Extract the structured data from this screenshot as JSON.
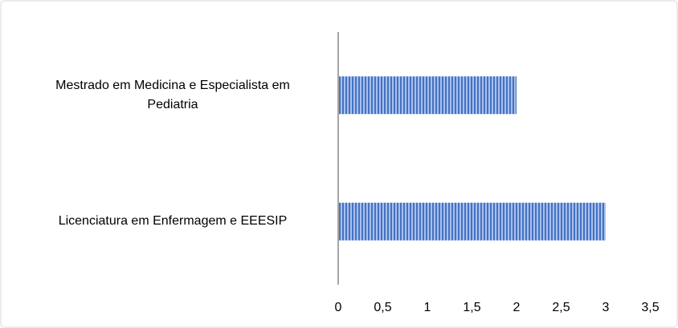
{
  "chart_data": {
    "type": "hbar",
    "categories": [
      "Mestrado em Medicina e Especialista em Pediatria",
      "Licenciatura em Enfermagem e EEESIP"
    ],
    "values": [
      2,
      3
    ],
    "color": "#4472c4",
    "xlim": [
      0,
      3.5
    ],
    "xticks": [
      0,
      {
        "value": 0.5,
        "label": "0,5"
      },
      1,
      {
        "value": 1.5,
        "label": "1,5"
      },
      2,
      {
        "value": 2.5,
        "label": "2,5"
      },
      3,
      {
        "value": 3.5,
        "label": "3,5"
      }
    ],
    "grid": false
  }
}
